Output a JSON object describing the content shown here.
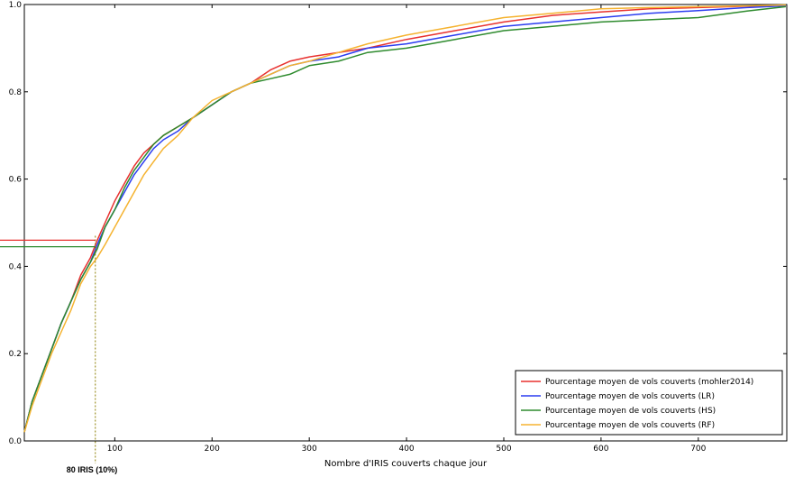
{
  "chart_data": {
    "type": "line",
    "title": "",
    "xlabel": "Nombre d'IRIS couverts chaque jour",
    "ylabel": "",
    "xlim": [
      7,
      791
    ],
    "ylim": [
      0.0,
      1.0
    ],
    "x_ticks": [
      100,
      200,
      300,
      400,
      500,
      600,
      700
    ],
    "y_ticks": [
      0.0,
      0.2,
      0.4,
      0.6,
      0.8,
      1.0
    ],
    "grid": false,
    "legend_position": "lower-right",
    "series": [
      {
        "name": "Pourcentage moyen de vols couverts (mohler2014)",
        "color": "#e8312f",
        "points": [
          [
            7,
            0.02
          ],
          [
            15,
            0.09
          ],
          [
            25,
            0.15
          ],
          [
            35,
            0.21
          ],
          [
            45,
            0.27
          ],
          [
            55,
            0.32
          ],
          [
            65,
            0.38
          ],
          [
            75,
            0.42
          ],
          [
            82,
            0.46
          ],
          [
            90,
            0.5
          ],
          [
            100,
            0.55
          ],
          [
            110,
            0.59
          ],
          [
            120,
            0.63
          ],
          [
            130,
            0.66
          ],
          [
            140,
            0.68
          ],
          [
            150,
            0.7
          ],
          [
            165,
            0.72
          ],
          [
            180,
            0.74
          ],
          [
            200,
            0.77
          ],
          [
            220,
            0.8
          ],
          [
            240,
            0.82
          ],
          [
            260,
            0.85
          ],
          [
            280,
            0.87
          ],
          [
            300,
            0.88
          ],
          [
            330,
            0.89
          ],
          [
            360,
            0.9
          ],
          [
            400,
            0.92
          ],
          [
            450,
            0.94
          ],
          [
            500,
            0.96
          ],
          [
            550,
            0.975
          ],
          [
            600,
            0.983
          ],
          [
            650,
            0.99
          ],
          [
            700,
            0.993
          ],
          [
            750,
            0.996
          ],
          [
            790,
            0.998
          ]
        ]
      },
      {
        "name": "Pourcentage moyen de vols couverts (LR)",
        "color": "#2b3df0",
        "points": [
          [
            7,
            0.02
          ],
          [
            15,
            0.09
          ],
          [
            25,
            0.15
          ],
          [
            35,
            0.21
          ],
          [
            45,
            0.27
          ],
          [
            55,
            0.32
          ],
          [
            65,
            0.37
          ],
          [
            75,
            0.41
          ],
          [
            82,
            0.45
          ],
          [
            90,
            0.49
          ],
          [
            100,
            0.53
          ],
          [
            110,
            0.57
          ],
          [
            120,
            0.61
          ],
          [
            130,
            0.64
          ],
          [
            140,
            0.67
          ],
          [
            150,
            0.69
          ],
          [
            165,
            0.71
          ],
          [
            180,
            0.74
          ],
          [
            200,
            0.77
          ],
          [
            220,
            0.8
          ],
          [
            240,
            0.82
          ],
          [
            260,
            0.84
          ],
          [
            280,
            0.86
          ],
          [
            300,
            0.87
          ],
          [
            330,
            0.88
          ],
          [
            360,
            0.9
          ],
          [
            400,
            0.91
          ],
          [
            450,
            0.93
          ],
          [
            500,
            0.95
          ],
          [
            550,
            0.96
          ],
          [
            600,
            0.97
          ],
          [
            650,
            0.98
          ],
          [
            700,
            0.986
          ],
          [
            750,
            0.993
          ],
          [
            790,
            0.997
          ]
        ]
      },
      {
        "name": "Pourcentage moyen de vols couverts (HS)",
        "color": "#2e8b2e",
        "points": [
          [
            7,
            0.02
          ],
          [
            15,
            0.09
          ],
          [
            25,
            0.15
          ],
          [
            35,
            0.21
          ],
          [
            45,
            0.27
          ],
          [
            55,
            0.32
          ],
          [
            65,
            0.37
          ],
          [
            75,
            0.41
          ],
          [
            82,
            0.44
          ],
          [
            90,
            0.49
          ],
          [
            100,
            0.53
          ],
          [
            110,
            0.58
          ],
          [
            120,
            0.62
          ],
          [
            130,
            0.65
          ],
          [
            140,
            0.68
          ],
          [
            150,
            0.7
          ],
          [
            165,
            0.72
          ],
          [
            180,
            0.74
          ],
          [
            200,
            0.77
          ],
          [
            220,
            0.8
          ],
          [
            240,
            0.82
          ],
          [
            260,
            0.83
          ],
          [
            280,
            0.84
          ],
          [
            300,
            0.86
          ],
          [
            330,
            0.87
          ],
          [
            360,
            0.89
          ],
          [
            400,
            0.9
          ],
          [
            450,
            0.92
          ],
          [
            500,
            0.94
          ],
          [
            550,
            0.95
          ],
          [
            600,
            0.96
          ],
          [
            650,
            0.965
          ],
          [
            700,
            0.97
          ],
          [
            750,
            0.985
          ],
          [
            790,
            0.995
          ]
        ]
      },
      {
        "name": "Pourcentage moyen de vols couverts (RF)",
        "color": "#f5b330",
        "points": [
          [
            7,
            0.02
          ],
          [
            15,
            0.08
          ],
          [
            25,
            0.14
          ],
          [
            35,
            0.2
          ],
          [
            45,
            0.25
          ],
          [
            55,
            0.3
          ],
          [
            65,
            0.36
          ],
          [
            75,
            0.4
          ],
          [
            82,
            0.42
          ],
          [
            90,
            0.45
          ],
          [
            100,
            0.49
          ],
          [
            110,
            0.53
          ],
          [
            120,
            0.57
          ],
          [
            130,
            0.61
          ],
          [
            140,
            0.64
          ],
          [
            150,
            0.67
          ],
          [
            165,
            0.7
          ],
          [
            180,
            0.74
          ],
          [
            200,
            0.78
          ],
          [
            220,
            0.8
          ],
          [
            240,
            0.82
          ],
          [
            260,
            0.84
          ],
          [
            280,
            0.86
          ],
          [
            300,
            0.87
          ],
          [
            330,
            0.89
          ],
          [
            360,
            0.91
          ],
          [
            400,
            0.93
          ],
          [
            450,
            0.95
          ],
          [
            500,
            0.97
          ],
          [
            550,
            0.98
          ],
          [
            600,
            0.99
          ],
          [
            650,
            0.993
          ],
          [
            700,
            0.995
          ],
          [
            750,
            0.997
          ],
          [
            790,
            0.999
          ]
        ]
      }
    ],
    "annotations": {
      "label": "80 IRIS (10%)",
      "x_value": 80,
      "h_lines": [
        {
          "y": 0.46,
          "color": "#e8312f"
        },
        {
          "y": 0.445,
          "color": "#2e8b2e"
        }
      ],
      "v_line_color": "#8b7d00"
    }
  }
}
